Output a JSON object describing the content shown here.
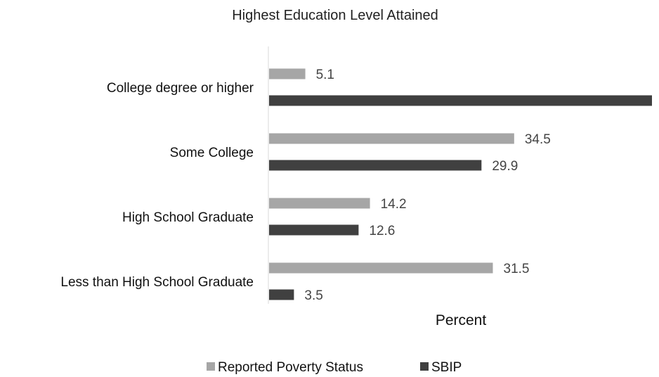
{
  "chart_data": {
    "type": "bar",
    "orientation": "horizontal",
    "title": "Highest Education Level Attained",
    "xlabel": "Percent",
    "ylabel": "",
    "categories": [
      "College degree or higher",
      "Some College",
      "High School Graduate",
      "Less than High School Graduate"
    ],
    "series": [
      {
        "name": "Reported Poverty Status",
        "values": [
          5.1,
          34.5,
          14.2,
          31.5
        ],
        "color": "#a6a6a6"
      },
      {
        "name": "SBIP",
        "values": [
          53.9,
          29.9,
          12.6,
          3.5
        ],
        "color": "#404040"
      }
    ],
    "xlim": [
      0,
      55
    ],
    "grid": false,
    "legend_position": "bottom"
  }
}
